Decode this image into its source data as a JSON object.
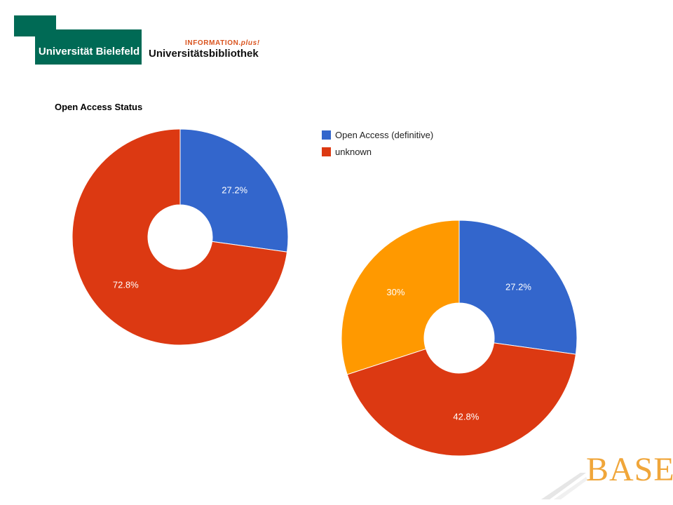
{
  "header": {
    "university_name": "Universität Bielefeld",
    "library_tagline_prefix": "INFORMATION.",
    "library_tagline_suffix": "plus!",
    "library_name": "Universitätsbibliothek"
  },
  "base_logo_text": "BASE",
  "colors": {
    "uni_green": "#006a55",
    "blue": "#3366cc",
    "red": "#dc3912",
    "orange": "#ff9900"
  },
  "chart_data": [
    {
      "type": "pie",
      "donut": true,
      "title": "Open Access Status",
      "legend_position": "right",
      "slices": [
        {
          "label": "Open Access (definitive)",
          "value": 27.2,
          "display": "27.2%",
          "color": "#3366cc"
        },
        {
          "label": "unknown",
          "value": 72.8,
          "display": "72.8%",
          "color": "#dc3912"
        }
      ]
    },
    {
      "type": "pie",
      "donut": true,
      "title": "",
      "slices": [
        {
          "label": "",
          "value": 27.2,
          "display": "27.2%",
          "color": "#3366cc"
        },
        {
          "label": "",
          "value": 42.8,
          "display": "42.8%",
          "color": "#dc3912"
        },
        {
          "label": "",
          "value": 30,
          "display": "30%",
          "color": "#ff9900"
        }
      ]
    }
  ]
}
